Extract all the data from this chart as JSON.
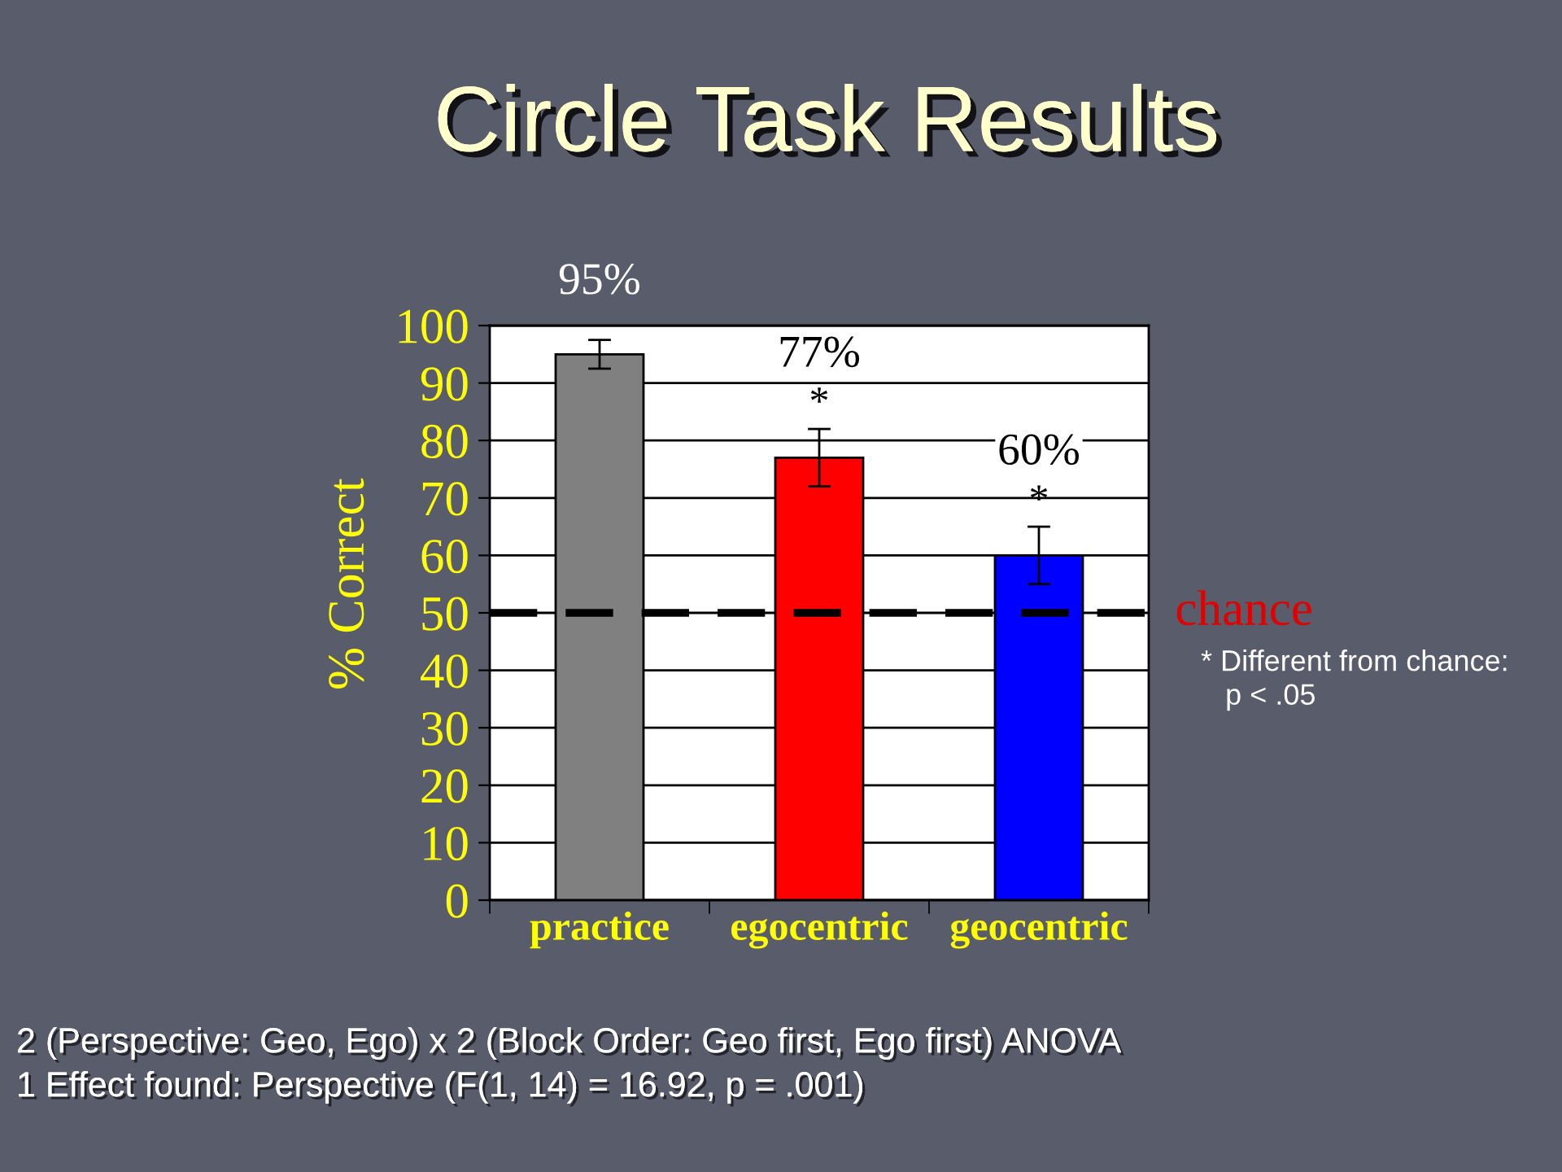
{
  "chart_data": {
    "type": "bar",
    "title": "Circle Task Results",
    "ylabel": "% Correct",
    "categories": [
      "practice",
      "egocentric",
      "geocentric"
    ],
    "values": [
      95,
      77,
      60
    ],
    "colors": [
      "#808080",
      "#ff0000",
      "#0000ff"
    ],
    "errors": [
      2.5,
      5,
      5
    ],
    "value_labels": [
      "95%",
      "77%",
      "60%"
    ],
    "ylim": [
      0,
      100
    ],
    "yticks": [
      0,
      10,
      20,
      30,
      40,
      50,
      60,
      70,
      80,
      90,
      100
    ],
    "grid": "y",
    "ref_lines": [
      {
        "axis": "y",
        "value": 50,
        "label": "chance",
        "color": "#000000",
        "line_style": "dashed"
      }
    ],
    "annotations": [
      {
        "text": "*",
        "x": "egocentric",
        "y": 77
      },
      {
        "text": "*",
        "x": "geocentric",
        "y": 60
      },
      "* Different from chance:\n   p < .05",
      "2 (Perspective: Geo, Ego) x 2 (Block Order: Geo first, Ego first) ANOVA",
      "1 Effect found: Perspective (F(1, 14) = 16.92, p = .001)"
    ]
  }
}
